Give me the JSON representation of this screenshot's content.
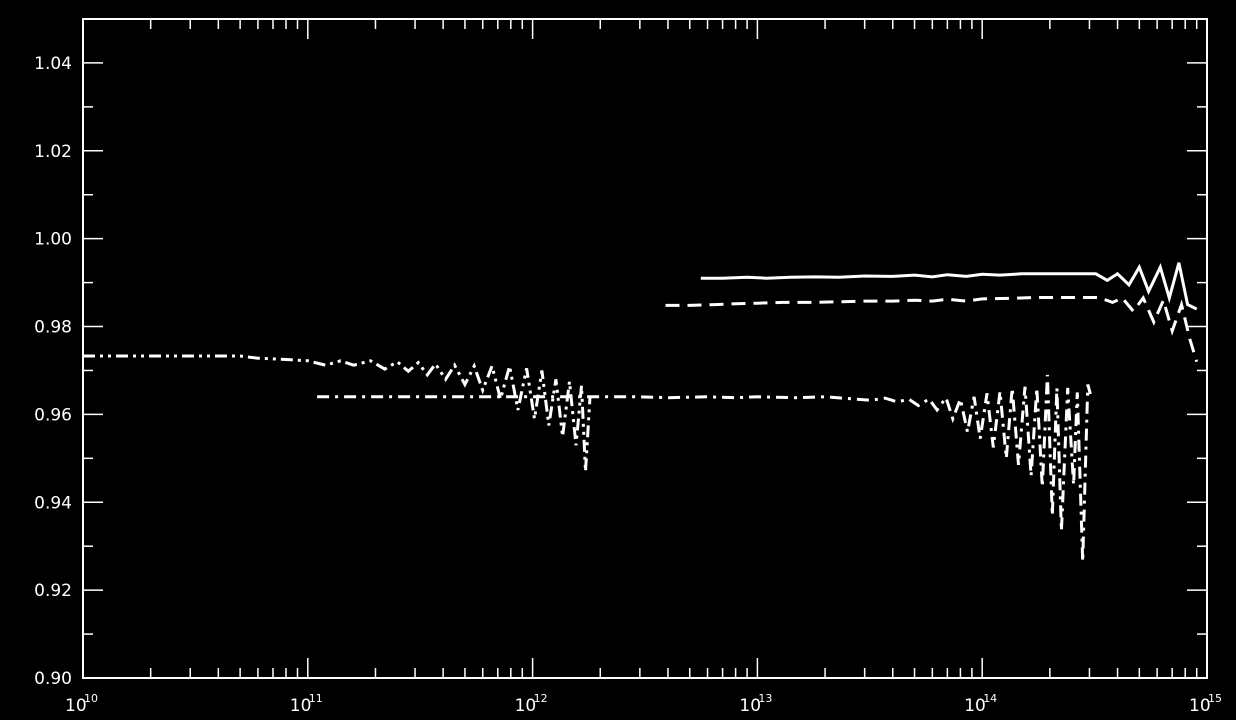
{
  "chart_data": {
    "type": "line",
    "title": "",
    "xlabel": "",
    "ylabel": "",
    "xscale": "log",
    "xlim": [
      10000000000.0,
      1000000000000000.0
    ],
    "ylim": [
      0.9,
      1.05
    ],
    "grid": false,
    "background": "#000000",
    "foreground": "#ffffff",
    "x_ticks": [
      {
        "base": "10",
        "exp": "10",
        "value": 10000000000.0
      },
      {
        "base": "10",
        "exp": "11",
        "value": 100000000000.0
      },
      {
        "base": "10",
        "exp": "12",
        "value": 1000000000000.0
      },
      {
        "base": "10",
        "exp": "13",
        "value": 10000000000000.0
      },
      {
        "base": "10",
        "exp": "14",
        "value": 100000000000000.0
      },
      {
        "base": "10",
        "exp": "15",
        "value": 1000000000000000.0
      }
    ],
    "y_ticks": [
      {
        "label": "0.90",
        "value": 0.9
      },
      {
        "label": "0.92",
        "value": 0.92
      },
      {
        "label": "0.94",
        "value": 0.94
      },
      {
        "label": "0.96",
        "value": 0.96
      },
      {
        "label": "0.98",
        "value": 0.98
      },
      {
        "label": "1.00",
        "value": 1.0
      },
      {
        "label": "1.02",
        "value": 1.02
      },
      {
        "label": "1.04",
        "value": 1.04
      }
    ],
    "series": [
      {
        "linestyle": "solid",
        "points": [
          [
            5600000000000.0,
            0.991
          ],
          [
            7000000000000.0,
            0.991
          ],
          [
            9000000000000.0,
            0.9912
          ],
          [
            11000000000000.0,
            0.991
          ],
          [
            14000000000000.0,
            0.9912
          ],
          [
            18000000000000.0,
            0.9913
          ],
          [
            23000000000000.0,
            0.9912
          ],
          [
            30000000000000.0,
            0.9915
          ],
          [
            40000000000000.0,
            0.9914
          ],
          [
            50000000000000.0,
            0.9917
          ],
          [
            60000000000000.0,
            0.9913
          ],
          [
            70000000000000.0,
            0.9918
          ],
          [
            85000000000000.0,
            0.9914
          ],
          [
            100000000000000.0,
            0.9919
          ],
          [
            120000000000000.0,
            0.9917
          ],
          [
            150000000000000.0,
            0.992
          ],
          [
            200000000000000.0,
            0.992
          ],
          [
            250000000000000.0,
            0.992
          ],
          [
            320000000000000.0,
            0.992
          ],
          [
            360000000000000.0,
            0.9905
          ],
          [
            400000000000000.0,
            0.992
          ],
          [
            450000000000000.0,
            0.9895
          ],
          [
            500000000000000.0,
            0.9935
          ],
          [
            550000000000000.0,
            0.988
          ],
          [
            620000000000000.0,
            0.9935
          ],
          [
            680000000000000.0,
            0.9865
          ],
          [
            750000000000000.0,
            0.9945
          ],
          [
            820000000000000.0,
            0.985
          ],
          [
            900000000000000.0,
            0.984
          ]
        ]
      },
      {
        "linestyle": "dashed",
        "points": [
          [
            3900000000000.0,
            0.9848
          ],
          [
            5000000000000.0,
            0.9848
          ],
          [
            6500000000000.0,
            0.985
          ],
          [
            8000000000000.0,
            0.9852
          ],
          [
            10000000000000.0,
            0.9853
          ],
          [
            13000000000000.0,
            0.9855
          ],
          [
            17000000000000.0,
            0.9855
          ],
          [
            22000000000000.0,
            0.9856
          ],
          [
            30000000000000.0,
            0.9858
          ],
          [
            40000000000000.0,
            0.9858
          ],
          [
            50000000000000.0,
            0.986
          ],
          [
            60000000000000.0,
            0.9858
          ],
          [
            70000000000000.0,
            0.9862
          ],
          [
            85000000000000.0,
            0.9858
          ],
          [
            100000000000000.0,
            0.9863
          ],
          [
            130000000000000.0,
            0.9864
          ],
          [
            170000000000000.0,
            0.9866
          ],
          [
            220000000000000.0,
            0.9866
          ],
          [
            280000000000000.0,
            0.9866
          ],
          [
            330000000000000.0,
            0.9866
          ],
          [
            380000000000000.0,
            0.9855
          ],
          [
            420000000000000.0,
            0.9865
          ],
          [
            470000000000000.0,
            0.9835
          ],
          [
            520000000000000.0,
            0.9865
          ],
          [
            580000000000000.0,
            0.981
          ],
          [
            640000000000000.0,
            0.986
          ],
          [
            700000000000000.0,
            0.979
          ],
          [
            770000000000000.0,
            0.985
          ],
          [
            840000000000000.0,
            0.977
          ],
          [
            900000000000000.0,
            0.972
          ]
        ]
      },
      {
        "linestyle": "dash-dot",
        "points": [
          [
            110000000000.0,
            0.964
          ],
          [
            150000000000.0,
            0.964
          ],
          [
            200000000000.0,
            0.964
          ],
          [
            300000000000.0,
            0.964
          ],
          [
            400000000000.0,
            0.964
          ],
          [
            550000000000.0,
            0.964
          ],
          [
            700000000000.0,
            0.964
          ],
          [
            900000000000.0,
            0.964
          ],
          [
            1200000000000.0,
            0.964
          ],
          [
            1600000000000.0,
            0.964
          ],
          [
            2000000000000.0,
            0.964
          ],
          [
            3000000000000.0,
            0.964
          ],
          [
            4000000000000.0,
            0.9638
          ],
          [
            6000000000000.0,
            0.964
          ],
          [
            8000000000000.0,
            0.9638
          ],
          [
            10000000000000.0,
            0.964
          ],
          [
            15000000000000.0,
            0.9638
          ],
          [
            20000000000000.0,
            0.964
          ],
          [
            27000000000000.0,
            0.9635
          ],
          [
            32000000000000.0,
            0.9632
          ],
          [
            37000000000000.0,
            0.9637
          ],
          [
            42000000000000.0,
            0.9628
          ],
          [
            47000000000000.0,
            0.9635
          ],
          [
            52000000000000.0,
            0.962
          ],
          [
            58000000000000.0,
            0.9635
          ],
          [
            63000000000000.0,
            0.961
          ],
          [
            69000000000000.0,
            0.9638
          ],
          [
            74000000000000.0,
            0.959
          ],
          [
            80000000000000.0,
            0.9635
          ],
          [
            86000000000000.0,
            0.956
          ],
          [
            92000000000000.0,
            0.964
          ],
          [
            98000000000000.0,
            0.9545
          ],
          [
            105000000000000.0,
            0.9648
          ],
          [
            112000000000000.0,
            0.9525
          ],
          [
            120000000000000.0,
            0.9652
          ],
          [
            128000000000000.0,
            0.95
          ],
          [
            136000000000000.0,
            0.966
          ],
          [
            145000000000000.0,
            0.9485
          ],
          [
            155000000000000.0,
            0.9663
          ],
          [
            165000000000000.0,
            0.946
          ],
          [
            175000000000000.0,
            0.966
          ],
          [
            185000000000000.0,
            0.9435
          ],
          [
            195000000000000.0,
            0.969
          ],
          [
            205000000000000.0,
            0.937
          ],
          [
            215000000000000.0,
            0.966
          ],
          [
            225000000000000.0,
            0.9335
          ],
          [
            240000000000000.0,
            0.966
          ],
          [
            255000000000000.0,
            0.944
          ],
          [
            265000000000000.0,
            0.965
          ],
          [
            280000000000000.0,
            0.9265
          ],
          [
            295000000000000.0,
            0.9668
          ],
          [
            305000000000000.0,
            0.964
          ]
        ]
      },
      {
        "linestyle": "dash-dot-dot",
        "points": [
          [
            10000000000.0,
            0.9733
          ],
          [
            15000000000.0,
            0.9733
          ],
          [
            20000000000.0,
            0.9733
          ],
          [
            30000000000.0,
            0.9733
          ],
          [
            40000000000.0,
            0.9733
          ],
          [
            50000000000.0,
            0.9733
          ],
          [
            60000000000.0,
            0.9728
          ],
          [
            80000000000.0,
            0.9725
          ],
          [
            100000000000.0,
            0.9722
          ],
          [
            120000000000.0,
            0.9712
          ],
          [
            140000000000.0,
            0.9722
          ],
          [
            160000000000.0,
            0.9712
          ],
          [
            190000000000.0,
            0.9722
          ],
          [
            220000000000.0,
            0.9703
          ],
          [
            250000000000.0,
            0.972
          ],
          [
            280000000000.0,
            0.9698
          ],
          [
            310000000000.0,
            0.9718
          ],
          [
            340000000000.0,
            0.969
          ],
          [
            370000000000.0,
            0.9715
          ],
          [
            410000000000.0,
            0.968
          ],
          [
            450000000000.0,
            0.9712
          ],
          [
            500000000000.0,
            0.9668
          ],
          [
            550000000000.0,
            0.971
          ],
          [
            600000000000.0,
            0.9655
          ],
          [
            660000000000.0,
            0.971
          ],
          [
            720000000000.0,
            0.9635
          ],
          [
            790000000000.0,
            0.971
          ],
          [
            860000000000.0,
            0.961
          ],
          [
            940000000000.0,
            0.9705
          ],
          [
            1020000000000.0,
            0.959
          ],
          [
            1100000000000.0,
            0.97
          ],
          [
            1180000000000.0,
            0.9575
          ],
          [
            1270000000000.0,
            0.968
          ],
          [
            1360000000000.0,
            0.955
          ],
          [
            1460000000000.0,
            0.9675
          ],
          [
            1560000000000.0,
            0.953
          ],
          [
            1650000000000.0,
            0.9665
          ],
          [
            1720000000000.0,
            0.947
          ],
          [
            1800000000000.0,
            0.964
          ]
        ]
      }
    ]
  }
}
